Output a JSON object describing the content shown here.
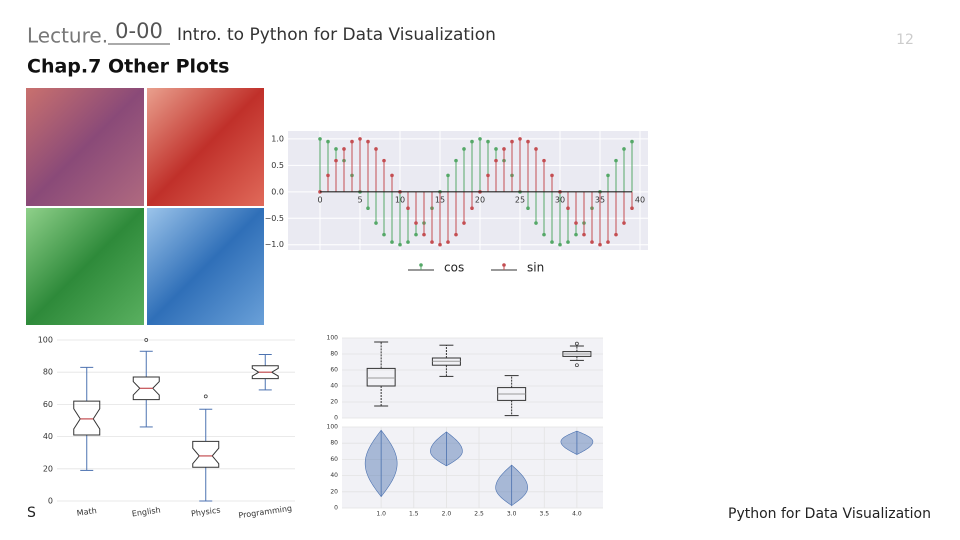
{
  "header": {
    "lecture_label": "Lecture.",
    "lecture_number": "0-00",
    "course": "Intro. to Python for Data Visualization",
    "page_number": "12",
    "title": "Chap.7 Other Plots"
  },
  "footer": {
    "left": "S",
    "right": "Python for Data Visualization"
  },
  "chart_data": [
    {
      "type": "stem",
      "xlim": [
        -4,
        41
      ],
      "ylim": [
        -1.1,
        1.15
      ],
      "grid": true,
      "xticks": [
        0,
        5,
        10,
        15,
        20,
        25,
        30,
        35,
        40
      ],
      "yticks": [
        {
          "value": 1,
          "label": "1.0"
        },
        {
          "value": 0.5,
          "label": "0.5"
        },
        {
          "value": 0,
          "label": "0.0"
        },
        {
          "value": -0.5,
          "label": "−0.5"
        },
        {
          "value": -1,
          "label": "−1.0"
        }
      ],
      "x": [
        0,
        1,
        2,
        3,
        4,
        5,
        6,
        7,
        8,
        9,
        10,
        11,
        12,
        13,
        14,
        15,
        16,
        17,
        18,
        19,
        20,
        21,
        22,
        23,
        24,
        25,
        26,
        27,
        28,
        29,
        30,
        31,
        32,
        33,
        34,
        35,
        36,
        37,
        38,
        39
      ],
      "series": [
        {
          "name": "cos",
          "color": "#55a868",
          "values": [
            1,
            0.95,
            0.81,
            0.59,
            0.31,
            0,
            -0.31,
            -0.59,
            -0.81,
            -0.95,
            -1,
            -0.95,
            -0.81,
            -0.59,
            -0.31,
            0,
            0.31,
            0.59,
            0.81,
            0.95,
            1,
            0.95,
            0.81,
            0.59,
            0.31,
            0,
            -0.31,
            -0.59,
            -0.81,
            -0.95,
            -1,
            -0.95,
            -0.81,
            -0.59,
            -0.31,
            0,
            0.31,
            0.59,
            0.81,
            0.95
          ]
        },
        {
          "name": "sin",
          "color": "#c44e52",
          "values": [
            0,
            0.31,
            0.59,
            0.81,
            0.95,
            1,
            0.95,
            0.81,
            0.59,
            0.31,
            0,
            -0.31,
            -0.59,
            -0.81,
            -0.95,
            -1,
            -0.95,
            -0.81,
            -0.59,
            -0.31,
            0,
            0.31,
            0.59,
            0.81,
            0.95,
            1,
            0.95,
            0.81,
            0.59,
            0.31,
            0,
            -0.31,
            -0.59,
            -0.81,
            -0.95,
            -1,
            -0.95,
            -0.81,
            -0.59,
            -0.31
          ]
        }
      ]
    },
    {
      "type": "boxplot",
      "notch": true,
      "color": "#4c72b0",
      "median_color": "#c44e52",
      "grid": true,
      "categories": [
        "Math",
        "English",
        "Physics",
        "Programming"
      ],
      "ylim": [
        0,
        100
      ],
      "yticks": [
        0,
        20,
        40,
        60,
        80,
        100
      ],
      "boxes": [
        {
          "whislo": 19,
          "q1": 41,
          "med": 51,
          "q3": 62,
          "whishi": 83
        },
        {
          "whislo": 46,
          "q1": 63,
          "med": 70,
          "q3": 77,
          "whishi": 93,
          "outliers": [
            100
          ]
        },
        {
          "whislo": 0,
          "q1": 21,
          "med": 28,
          "q3": 37,
          "whishi": 57,
          "outliers": [
            65
          ]
        },
        {
          "whislo": 69,
          "q1": 76,
          "med": 80,
          "q3": 84,
          "whishi": 91
        }
      ]
    },
    {
      "type": "boxplot",
      "notch": false,
      "color": "#333333",
      "median_color": "#999999",
      "grid": true,
      "positions": [
        1,
        2,
        3,
        4
      ],
      "xlim": [
        0.4,
        4.4
      ],
      "ylim": [
        0,
        100
      ],
      "yticks": [
        0,
        20,
        40,
        60,
        80,
        100
      ],
      "boxes": [
        {
          "whislo": 15,
          "q1": 40,
          "med": 50,
          "q3": 62,
          "whishi": 95
        },
        {
          "whislo": 52,
          "q1": 66,
          "med": 71,
          "q3": 75,
          "whishi": 91
        },
        {
          "whislo": 3,
          "q1": 22,
          "med": 30,
          "q3": 38,
          "whishi": 53
        },
        {
          "whislo": 72,
          "q1": 77,
          "med": 80,
          "q3": 83,
          "whishi": 90,
          "outliers": [
            66,
            93
          ]
        }
      ]
    },
    {
      "type": "violin",
      "color": "#4c72b0",
      "grid": true,
      "positions": [
        1,
        2,
        3,
        4
      ],
      "xlim": [
        0.4,
        4.4
      ],
      "xticks": [
        {
          "value": 1,
          "label": "1.0"
        },
        {
          "value": 1.5,
          "label": "1.5"
        },
        {
          "value": 2,
          "label": "2.0"
        },
        {
          "value": 2.5,
          "label": "2.5"
        },
        {
          "value": 3,
          "label": "3.0"
        },
        {
          "value": 3.5,
          "label": "3.5"
        },
        {
          "value": 4,
          "label": "4.0"
        }
      ],
      "ylim": [
        0,
        100
      ],
      "yticks": [
        0,
        20,
        40,
        60,
        80,
        100
      ],
      "violins": [
        {
          "min": 14,
          "median": 55,
          "max": 96
        },
        {
          "min": 52,
          "median": 70,
          "max": 94
        },
        {
          "min": 3,
          "median": 25,
          "max": 53
        },
        {
          "min": 66,
          "median": 82,
          "max": 95
        }
      ]
    }
  ]
}
